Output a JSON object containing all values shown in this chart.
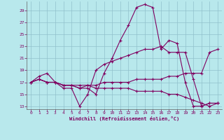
{
  "xlabel": "Windchill (Refroidissement éolien,°C)",
  "xlim": [
    -0.5,
    23.5
  ],
  "ylim": [
    12.5,
    30.5
  ],
  "yticks": [
    13,
    15,
    17,
    19,
    21,
    23,
    25,
    27,
    29
  ],
  "xticks": [
    0,
    1,
    2,
    3,
    4,
    5,
    6,
    7,
    8,
    9,
    10,
    11,
    12,
    13,
    14,
    15,
    16,
    17,
    18,
    19,
    20,
    21,
    22,
    23
  ],
  "background_color": "#b8e8ec",
  "line_color": "#800060",
  "grid_color": "#90c0cc",
  "lines": [
    {
      "x": [
        0,
        1,
        2,
        3,
        4,
        5,
        6,
        7,
        8,
        9,
        10,
        11,
        12,
        13,
        14,
        15,
        16,
        17,
        18,
        19,
        20,
        21,
        22,
        23
      ],
      "y": [
        17,
        17.5,
        17,
        17,
        16.5,
        16.5,
        16,
        16,
        15,
        18.5,
        21,
        24,
        26.5,
        29.5,
        30,
        29.5,
        22.5,
        24,
        23.5,
        17,
        13,
        13,
        13.5,
        13.5
      ]
    },
    {
      "x": [
        0,
        1,
        2,
        3,
        4,
        5,
        6,
        7,
        8,
        9,
        10,
        11,
        12,
        13,
        14,
        15,
        16,
        17,
        18,
        19,
        20,
        21,
        22,
        23
      ],
      "y": [
        17,
        18,
        18.5,
        17,
        16,
        16,
        13,
        15,
        19,
        20,
        20.5,
        21,
        21.5,
        22,
        22.5,
        22.5,
        23,
        22,
        22,
        22,
        17.5,
        13,
        13.5,
        13.5
      ]
    },
    {
      "x": [
        0,
        1,
        2,
        3,
        4,
        5,
        6,
        7,
        8,
        9,
        10,
        11,
        12,
        13,
        14,
        15,
        16,
        17,
        18,
        19,
        20,
        21,
        22,
        23
      ],
      "y": [
        17,
        17.5,
        17,
        17,
        16.5,
        16.5,
        16.5,
        16.5,
        16.5,
        17,
        17,
        17,
        17,
        17.5,
        17.5,
        17.5,
        17.5,
        18,
        18,
        18.5,
        18.5,
        18.5,
        22,
        22.5
      ]
    },
    {
      "x": [
        0,
        1,
        2,
        3,
        4,
        5,
        6,
        7,
        8,
        9,
        10,
        11,
        12,
        13,
        14,
        15,
        16,
        17,
        18,
        19,
        20,
        21,
        22,
        23
      ],
      "y": [
        17,
        17.5,
        17,
        17,
        16.5,
        16.5,
        16,
        16.5,
        16,
        16,
        16,
        16,
        16,
        15.5,
        15.5,
        15.5,
        15.5,
        15,
        15,
        14.5,
        14,
        13.5,
        13,
        13.5
      ]
    }
  ]
}
